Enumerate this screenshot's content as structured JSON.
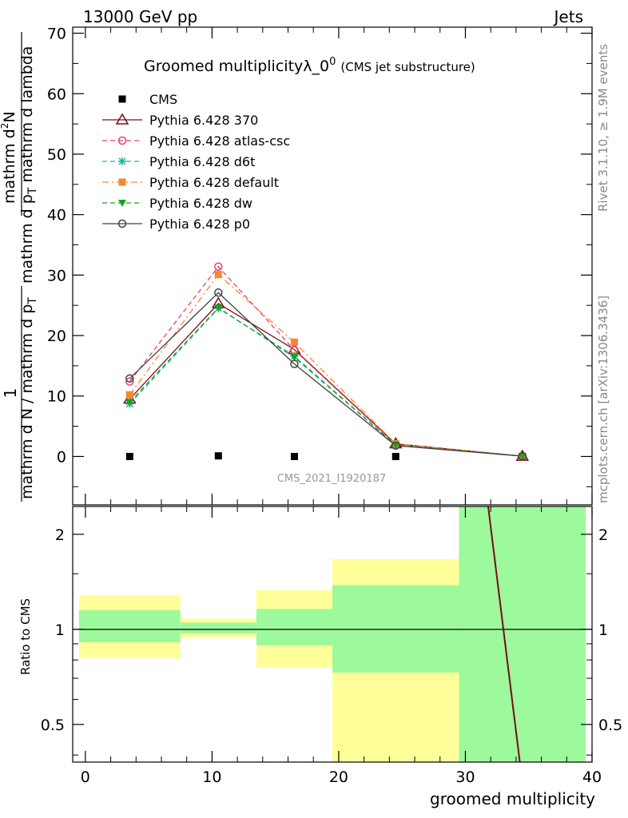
{
  "header": {
    "left": "13000 GeV pp",
    "right": "Jets"
  },
  "side_labels": {
    "rivet": "Rivet 3.1.10, ≥ 1.9M events",
    "mcplots": "mcplots.cern.ch [arXiv:1306.3436]"
  },
  "watermark": "CMS_2021_I1920187",
  "chart_data": [
    {
      "type": "line",
      "title": "Groomed multiplicityλ_0",
      "title_sup": "0",
      "subtitle": "(CMS jet substructure)",
      "xlabel": "",
      "ylabel_parts": {
        "num_a": "1",
        "den_a": "mathrm d N / mathrm d p",
        "den_a_sub": "T",
        "den_b": "mathrm d p",
        "den_b_sub": "T",
        "den_c": "mathrm d lambda",
        "num_b": "mathrm d",
        "num_b_sup": "2",
        "num_c": "N"
      },
      "xlim": [
        -1,
        40
      ],
      "ylim": [
        -8,
        71
      ],
      "yticks": [
        0,
        10,
        20,
        30,
        40,
        50,
        60,
        70
      ],
      "x": [
        3.5,
        10.5,
        16.5,
        24.5,
        34.5
      ],
      "series": [
        {
          "name": "CMS",
          "color": "#000000",
          "marker": "square",
          "line": "none",
          "values": [
            0,
            0.1,
            0,
            0,
            0
          ]
        },
        {
          "name": "Pythia 6.428 370",
          "color": "#7a0b1a",
          "marker": "triangle-open",
          "line": "solid",
          "values": [
            9.5,
            25.3,
            17.7,
            2.1,
            0.05
          ]
        },
        {
          "name": "Pythia 6.428 atlas-csc",
          "color": "#e8415f",
          "marker": "circle-open",
          "line": "dashed",
          "values": [
            12.4,
            31.4,
            17.6,
            2.0,
            0.05
          ]
        },
        {
          "name": "Pythia 6.428 d6t",
          "color": "#1ab39b",
          "marker": "star",
          "line": "dashed",
          "values": [
            8.7,
            24.5,
            16.6,
            1.9,
            0.05
          ]
        },
        {
          "name": "Pythia 6.428 default",
          "color": "#f7862f",
          "marker": "square",
          "line": "dashdot",
          "values": [
            10.2,
            30.1,
            18.9,
            2.1,
            0.05
          ]
        },
        {
          "name": "Pythia 6.428 dw",
          "color": "#17a317",
          "marker": "triangle-down",
          "line": "dashed",
          "values": [
            9.0,
            24.6,
            16.4,
            1.9,
            0.05
          ]
        },
        {
          "name": "Pythia 6.428 p0",
          "color": "#404040",
          "marker": "circle-open",
          "line": "solid",
          "values": [
            12.9,
            27.1,
            15.3,
            1.8,
            0.05
          ]
        }
      ],
      "legend_position": "top-left"
    },
    {
      "type": "area",
      "ylabel": "Ratio to CMS",
      "xlabel": "groomed multiplicity",
      "xlim": [
        -1,
        40
      ],
      "ylim": [
        0.38,
        2.45
      ],
      "y_scale": "log",
      "yticks": [
        0.5,
        1,
        2
      ],
      "xticks": [
        0,
        10,
        20,
        30,
        40
      ],
      "bins": [
        {
          "lo": -0.5,
          "hi": 7.5,
          "stat_lo": 0.91,
          "stat_hi": 1.15,
          "tot_lo": 0.81,
          "tot_hi": 1.28
        },
        {
          "lo": 7.5,
          "hi": 13.5,
          "stat_lo": 0.97,
          "stat_hi": 1.05,
          "tot_lo": 0.94,
          "tot_hi": 1.08
        },
        {
          "lo": 13.5,
          "hi": 19.5,
          "stat_lo": 0.89,
          "stat_hi": 1.16,
          "tot_lo": 0.76,
          "tot_hi": 1.33
        },
        {
          "lo": 19.5,
          "hi": 29.5,
          "stat_lo": 0.73,
          "stat_hi": 1.38,
          "tot_lo": 0.38,
          "tot_hi": 1.67
        },
        {
          "lo": 29.5,
          "hi": 39.5,
          "stat_lo": 0.38,
          "stat_hi": 2.45,
          "tot_lo": 0.38,
          "tot_hi": 2.45
        }
      ],
      "ratio_line": {
        "color": "#7a0b1a",
        "x": [
          31.8,
          34.3
        ],
        "values": [
          2.45,
          0.38
        ]
      },
      "stat_color": "#9cf99c",
      "total_color": "#ffff99"
    }
  ]
}
